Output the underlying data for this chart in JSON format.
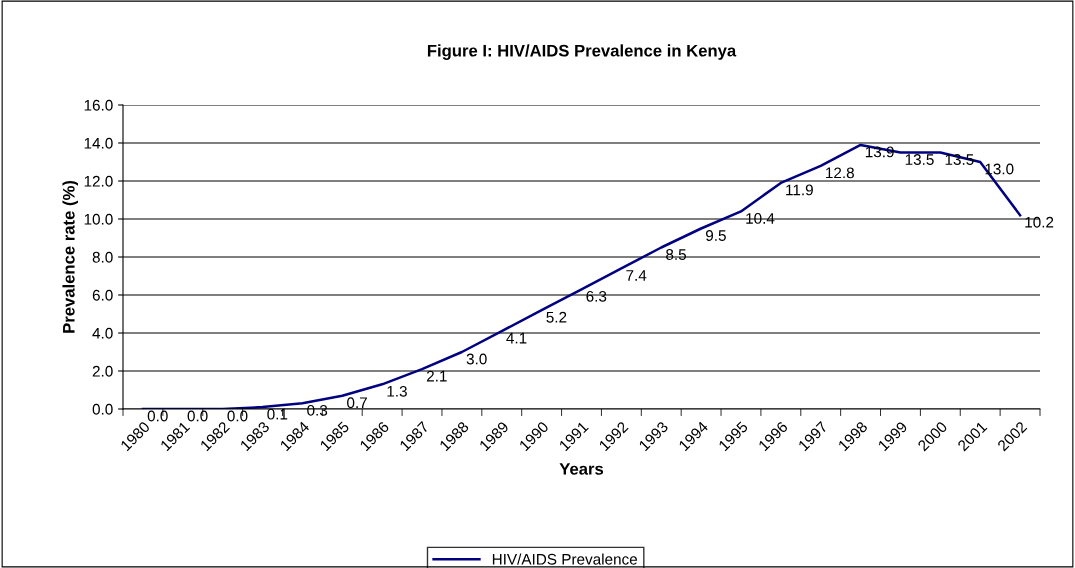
{
  "chart_data": {
    "type": "line",
    "title": "Figure I: HIV/AIDS Prevalence in Kenya",
    "xlabel": "Years",
    "ylabel": "Prevalence rate (%)",
    "categories": [
      "1980",
      "1981",
      "1982",
      "1983",
      "1984",
      "1985",
      "1986",
      "1987",
      "1988",
      "1989",
      "1990",
      "1991",
      "1992",
      "1993",
      "1994",
      "1995",
      "1996",
      "1997",
      "1998",
      "1999",
      "2000",
      "2001",
      "2002"
    ],
    "series": [
      {
        "name": "HIV/AIDS Prevalence",
        "color": "#000080",
        "values": [
          0.0,
          0.0,
          0.0,
          0.1,
          0.3,
          0.7,
          1.3,
          2.1,
          3.0,
          4.1,
          5.2,
          6.3,
          7.4,
          8.5,
          9.5,
          10.4,
          11.9,
          12.8,
          13.9,
          13.5,
          13.5,
          13.0,
          10.2
        ],
        "value_labels": [
          "0.0",
          "0.0",
          "0.0",
          "0.1",
          "0.3",
          "0.7",
          "1.3",
          "2.1",
          "3.0",
          "4.1",
          "5.2",
          "6.3",
          "7.4",
          "8.5",
          "9.5",
          "10.4",
          "11.9",
          "12.8",
          "13.9",
          "13.5",
          "13.5",
          "13.0",
          "10.2"
        ]
      }
    ],
    "ylim": [
      0,
      16
    ],
    "yticks": [
      {
        "value": 0,
        "label": "0.0"
      },
      {
        "value": 2,
        "label": "2.0"
      },
      {
        "value": 4,
        "label": "4.0"
      },
      {
        "value": 6,
        "label": "6.0"
      },
      {
        "value": 8,
        "label": "8.0"
      },
      {
        "value": 10,
        "label": "10.0"
      },
      {
        "value": 12,
        "label": "12.0"
      },
      {
        "value": 14,
        "label": "14.0"
      },
      {
        "value": 16,
        "label": "16.0"
      }
    ],
    "grid": "y",
    "legend": "bottom",
    "marker": "none",
    "line_style": "solid"
  }
}
